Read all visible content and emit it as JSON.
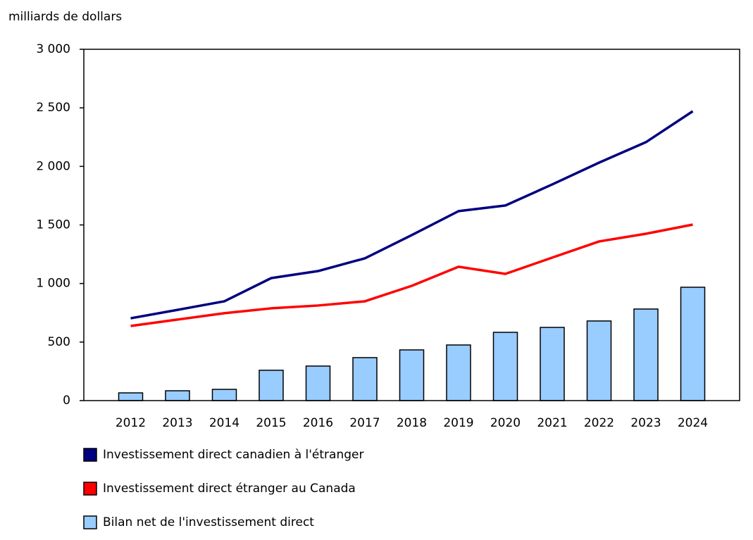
{
  "chart_data": {
    "type": "combo",
    "y_label": "milliards de dollars",
    "categories": [
      "2012",
      "2013",
      "2014",
      "2015",
      "2016",
      "2017",
      "2018",
      "2019",
      "2020",
      "2021",
      "2022",
      "2023",
      "2024"
    ],
    "series": [
      {
        "name": "Investissement direct canadien à l'étranger",
        "type": "line",
        "color": "#000080",
        "values": [
          703,
          775,
          848,
          1046,
          1106,
          1215,
          1413,
          1618,
          1666,
          1846,
          2032,
          2207,
          2471
        ]
      },
      {
        "name": "Investissement direct étranger au Canada",
        "type": "line",
        "color": "#ff0000",
        "values": [
          637,
          692,
          746,
          788,
          812,
          848,
          980,
          1143,
          1082,
          1221,
          1359,
          1425,
          1503
        ]
      },
      {
        "name": "Bilan net de l'investissement direct",
        "type": "bar",
        "color": "#99ccff",
        "values": [
          66,
          84,
          96,
          259,
          295,
          367,
          433,
          475,
          583,
          625,
          680,
          782,
          968
        ]
      }
    ],
    "ylim": [
      0,
      3000
    ],
    "yticks": [
      0,
      500,
      {
        "value": 1000,
        "label": "1 000"
      },
      {
        "value": 1500,
        "label": "1 500"
      },
      {
        "value": 2000,
        "label": "2 000"
      },
      {
        "value": 2500,
        "label": "2 500"
      },
      {
        "value": 3000,
        "label": "3 000"
      }
    ],
    "grid": false
  }
}
